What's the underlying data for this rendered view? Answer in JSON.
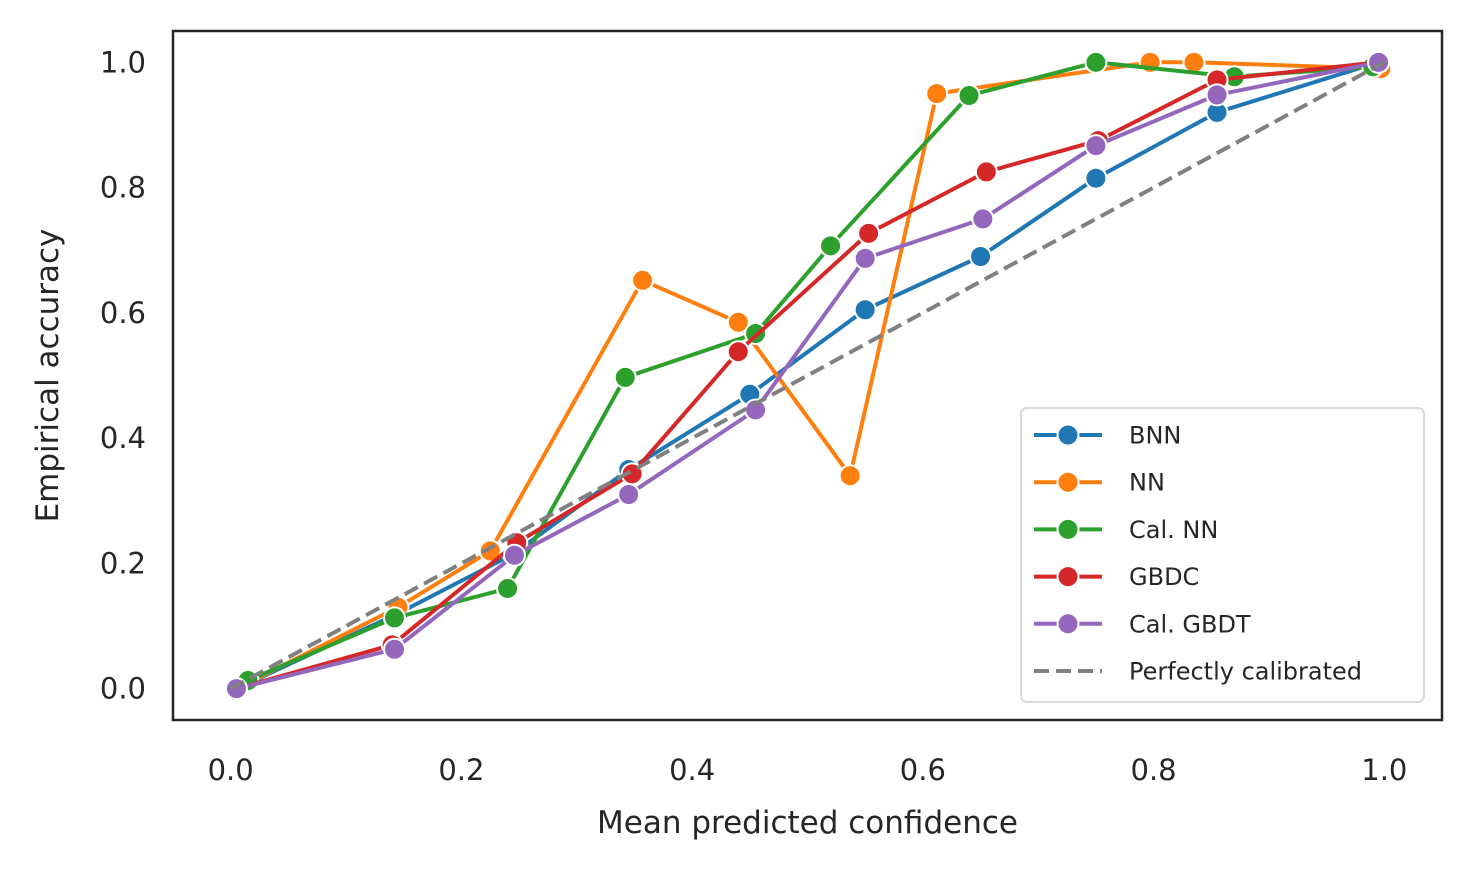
{
  "chart_data": {
    "type": "line",
    "title": "",
    "xlabel": "Mean predicted confidence",
    "ylabel": "Empirical accuracy",
    "xlim": [
      -0.05,
      1.05
    ],
    "ylim": [
      -0.05,
      1.05
    ],
    "xticks": [
      "0.0",
      "0.2",
      "0.4",
      "0.6",
      "0.8",
      "1.0"
    ],
    "yticks": [
      "0.0",
      "0.2",
      "0.4",
      "0.6",
      "0.8",
      "1.0"
    ],
    "grid": false,
    "legend_position": "lower-right",
    "series": [
      {
        "name": "BNN",
        "color": "#1f77b4",
        "x": [
          0.005,
          0.145,
          0.245,
          0.345,
          0.45,
          0.55,
          0.65,
          0.75,
          0.855,
          0.995
        ],
        "y": [
          0.0,
          0.12,
          0.215,
          0.35,
          0.47,
          0.605,
          0.69,
          0.815,
          0.92,
          1.0
        ]
      },
      {
        "name": "NN",
        "color": "#ff7f0e",
        "x": [
          0.005,
          0.145,
          0.225,
          0.357,
          0.44,
          0.537,
          0.612,
          0.797,
          0.835,
          0.997
        ],
        "y": [
          0.0,
          0.13,
          0.22,
          0.652,
          0.585,
          0.34,
          0.95,
          1.0,
          1.0,
          0.99
        ]
      },
      {
        "name": "Cal. NN",
        "color": "#2ca02c",
        "x": [
          0.015,
          0.142,
          0.24,
          0.342,
          0.455,
          0.52,
          0.64,
          0.75,
          0.87,
          0.99
        ],
        "y": [
          0.013,
          0.113,
          0.16,
          0.497,
          0.567,
          0.707,
          0.947,
          1.0,
          0.977,
          0.993
        ]
      },
      {
        "name": "GBDC",
        "color": "#d62728",
        "x": [
          0.005,
          0.14,
          0.248,
          0.348,
          0.44,
          0.553,
          0.655,
          0.752,
          0.855,
          0.995
        ],
        "y": [
          0.0,
          0.07,
          0.233,
          0.343,
          0.538,
          0.727,
          0.825,
          0.875,
          0.972,
          1.0
        ]
      },
      {
        "name": "Cal. GBDT",
        "color": "#9467bd",
        "x": [
          0.005,
          0.142,
          0.246,
          0.345,
          0.455,
          0.55,
          0.652,
          0.75,
          0.855,
          0.995
        ],
        "y": [
          0.0,
          0.063,
          0.213,
          0.31,
          0.445,
          0.687,
          0.75,
          0.867,
          0.948,
          1.0
        ]
      }
    ],
    "reference_line": {
      "name": "Perfectly calibrated",
      "color": "#808080",
      "style": "dashed",
      "x": [
        0.0,
        1.0
      ],
      "y": [
        0.0,
        1.0
      ]
    }
  }
}
